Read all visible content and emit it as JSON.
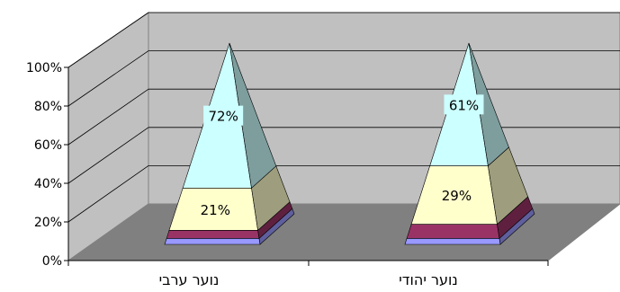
{
  "chart_data": {
    "type": "bar",
    "variant": "3d-stacked-100-pyramid",
    "title": "",
    "xlabel": "",
    "ylabel": "",
    "ylim": [
      0,
      100
    ],
    "y_ticks": [
      "0%",
      "20%",
      "40%",
      "60%",
      "80%",
      "100%"
    ],
    "grid": true,
    "categories": [
      "נוער ערבי",
      "נוער יהודי"
    ],
    "series": [
      {
        "color": "#9999ff",
        "values": [
          3,
          3
        ]
      },
      {
        "color": "#993366",
        "values": [
          4,
          7
        ]
      },
      {
        "color": "#ffffcc",
        "values": [
          21,
          29
        ]
      },
      {
        "color": "#ccffff",
        "values": [
          72,
          61
        ]
      }
    ],
    "data_labels": [
      [
        "",
        ""
      ],
      [
        "",
        ""
      ],
      [
        "21%",
        "29%"
      ],
      [
        "72%",
        "61%"
      ]
    ]
  }
}
